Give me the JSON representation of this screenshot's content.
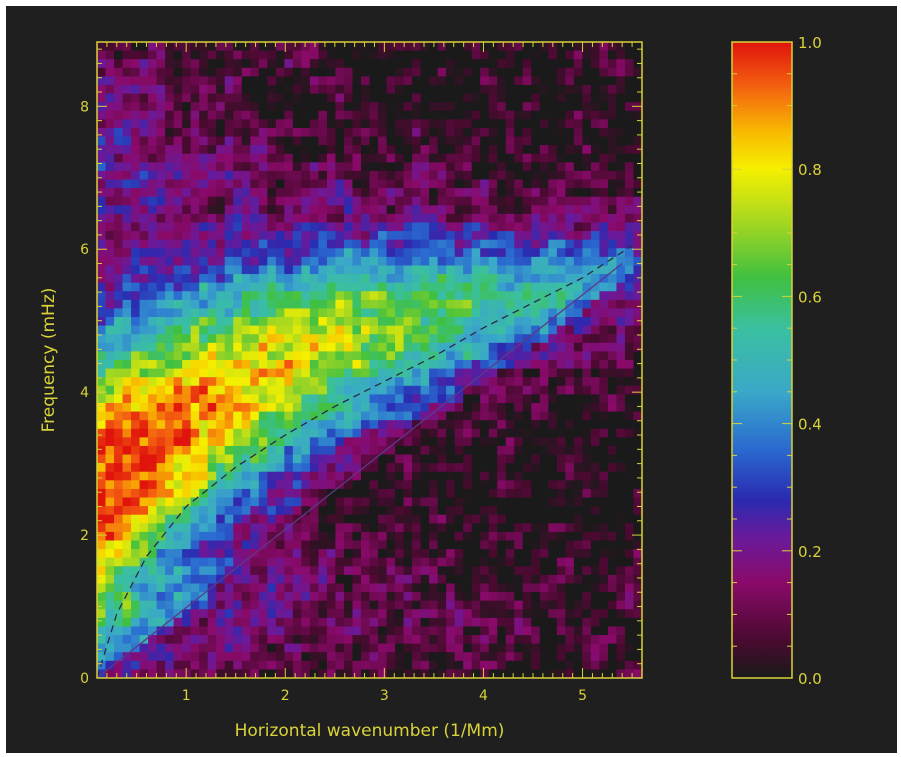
{
  "chart_data": {
    "type": "heatmap",
    "title": "",
    "xlabel": "Horizontal wavenumber (1/Mm)",
    "ylabel": "Frequency (mHz)",
    "xlim": [
      0.1,
      5.6
    ],
    "ylim": [
      0,
      8.9
    ],
    "x_ticks": [
      1,
      2,
      3,
      4,
      5
    ],
    "y_ticks": [
      0,
      2,
      4,
      6,
      8
    ],
    "colorbar": {
      "range": [
        0.0,
        1.0
      ],
      "ticks": [
        "0.0",
        "0.2",
        "0.4",
        "0.6",
        "0.8",
        "1.0"
      ],
      "colormap": "rainbow"
    },
    "overlay_lines": [
      {
        "style": "solid",
        "color": "#5a3a8a",
        "points": [
          [
            0.1,
            0.0
          ],
          [
            5.4,
            5.8
          ]
        ]
      },
      {
        "style": "dashed",
        "color": "#2a2a4a",
        "points": [
          [
            0.1,
            0.0
          ],
          [
            0.3,
            0.9
          ],
          [
            0.6,
            1.7
          ],
          [
            1.0,
            2.4
          ],
          [
            1.5,
            2.95
          ],
          [
            2.0,
            3.4
          ],
          [
            2.5,
            3.8
          ],
          [
            3.0,
            4.15
          ],
          [
            3.5,
            4.5
          ],
          [
            4.0,
            4.9
          ],
          [
            4.5,
            5.25
          ],
          [
            5.0,
            5.6
          ],
          [
            5.5,
            6.05
          ]
        ]
      }
    ],
    "ridge_description": "power peaks near 1.0 along a broad band from ~2.5-6 mHz at low wavenumber, narrowing toward ~5 mHz at 4-4.5 1/Mm"
  },
  "colors": {
    "background": "#1f1f1f",
    "axis": "#d9d23a"
  }
}
